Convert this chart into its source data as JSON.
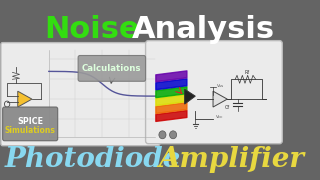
{
  "bg_color": "#646464",
  "title_noise": "Noise",
  "title_analysis": "Analysis",
  "noise_color": "#33dd11",
  "analysis_color": "#ffffff",
  "title_fontsize": 22,
  "subtitle_photodiode": "Photodiode",
  "subtitle_amplifier": "Amplifier",
  "photodiode_color": "#88d8f0",
  "amplifier_color": "#e8d840",
  "subtitle_fontsize": 20,
  "panel_bg": "#e8e8e8",
  "calc_label": "Calculations",
  "spice_label": "SPICE\nSimulations",
  "spice_yellow": "#ddcc22"
}
